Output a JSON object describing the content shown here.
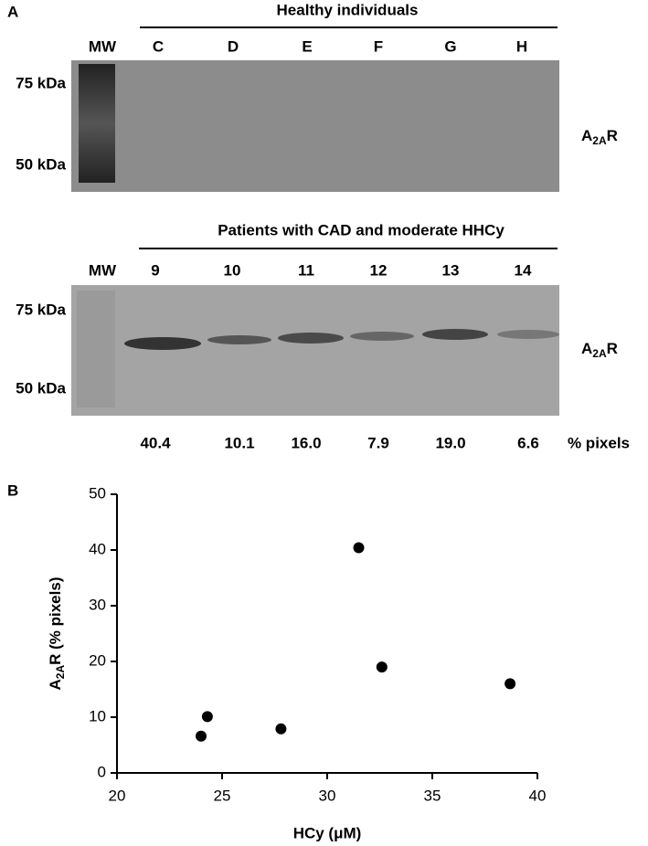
{
  "panel_a": {
    "label": "A",
    "blot_1": {
      "header": "Healthy individuals",
      "lanes": [
        "MW",
        "C",
        "D",
        "E",
        "F",
        "G",
        "H"
      ],
      "markers": [
        "75 kDa",
        "50 kDa"
      ],
      "protein": [
        "A",
        "2A",
        "R"
      ]
    },
    "blot_2": {
      "header": "Patients with  CAD and moderate HHCy",
      "lanes": [
        "MW",
        "9",
        "10",
        "11",
        "12",
        "13",
        "14"
      ],
      "markers": [
        "75 kDa",
        "50 kDa"
      ],
      "protein": [
        "A",
        "2A",
        "R"
      ],
      "quantification": [
        "40.4",
        "10.1",
        "16.0",
        "7.9",
        "19.0",
        "6.6"
      ],
      "quantification_unit": "% pixels"
    }
  },
  "panel_b": {
    "label": "B"
  },
  "chart_data": {
    "type": "scatter",
    "xlabel": "HCy (μM)",
    "ylabel": [
      "A",
      "2A",
      "R (% pixels)"
    ],
    "series": [
      {
        "color": "#000000",
        "x": [
          31.5,
          24.3,
          38.7,
          27.8,
          32.6,
          24.0
        ],
        "values": [
          40.4,
          10.1,
          16.0,
          7.9,
          19.0,
          6.6
        ]
      }
    ],
    "xlim": [
      20,
      40
    ],
    "xticks": [
      20,
      25,
      30,
      35,
      40
    ],
    "ylim": [
      0,
      50
    ],
    "yticks": [
      0,
      10,
      20,
      30,
      40,
      50
    ],
    "grid": false
  }
}
